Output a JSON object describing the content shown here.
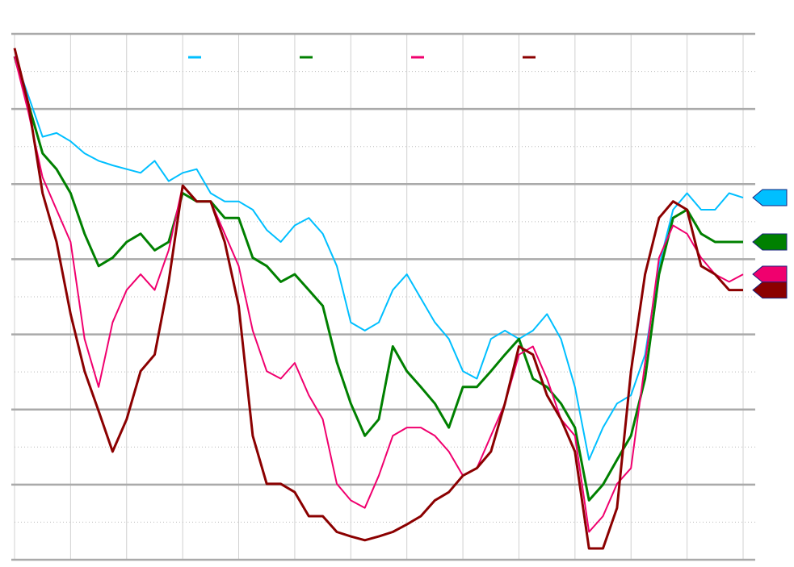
{
  "chart_data": {
    "type": "line",
    "x": [
      0,
      0.25,
      0.5,
      0.75,
      1,
      1.25,
      1.5,
      1.75,
      2,
      2.25,
      2.5,
      2.75,
      3,
      3.25,
      3.5,
      3.75,
      4,
      4.25,
      4.5,
      4.75,
      5,
      5.25,
      5.5,
      5.75,
      6,
      6.25,
      6.5,
      6.75,
      7,
      7.25,
      7.5,
      7.75,
      8,
      8.25,
      8.5,
      8.75,
      9,
      9.25,
      9.5,
      9.75,
      10,
      10.25,
      10.5,
      10.75,
      11,
      11.25,
      11.5,
      11.75,
      12,
      12.25,
      12.5,
      12.75,
      13
    ],
    "xlim": [
      0,
      13
    ],
    "xticks": [
      0,
      1,
      2,
      3,
      4,
      5,
      6,
      7,
      8,
      9,
      10,
      11,
      12,
      13
    ],
    "ylim": [
      0,
      7
    ],
    "yticks": [
      0,
      1,
      2,
      3,
      4,
      5,
      6,
      7
    ],
    "minor_yticks": [
      0.5,
      1.5,
      2.5,
      3.5,
      4.5,
      5.5,
      6.5
    ],
    "grid": true,
    "series": [
      {
        "color": "#00bfff",
        "values": [
          6.7,
          6.17,
          5.63,
          5.68,
          5.57,
          5.41,
          5.31,
          5.25,
          5.2,
          5.15,
          5.31,
          5.04,
          5.15,
          5.2,
          4.88,
          4.77,
          4.77,
          4.66,
          4.39,
          4.23,
          4.45,
          4.55,
          4.34,
          3.91,
          3.16,
          3.05,
          3.16,
          3.59,
          3.8,
          3.48,
          3.16,
          2.94,
          2.51,
          2.41,
          2.94,
          3.05,
          2.94,
          3.05,
          3.27,
          2.94,
          2.3,
          1.33,
          1.76,
          2.08,
          2.19,
          2.73,
          3.91,
          4.66,
          4.88,
          4.66,
          4.66,
          4.88,
          4.82
        ]
      },
      {
        "color": "#008000",
        "values": [
          6.7,
          6.06,
          5.41,
          5.2,
          4.88,
          4.34,
          3.91,
          4.02,
          4.23,
          4.34,
          4.12,
          4.23,
          4.88,
          4.77,
          4.77,
          4.55,
          4.55,
          4.02,
          3.91,
          3.7,
          3.8,
          3.59,
          3.38,
          2.63,
          2.08,
          1.65,
          1.87,
          2.84,
          2.51,
          2.3,
          2.08,
          1.76,
          2.3,
          2.3,
          2.51,
          2.73,
          2.94,
          2.41,
          2.3,
          2.08,
          1.76,
          0.79,
          1.0,
          1.33,
          1.65,
          2.41,
          3.8,
          4.55,
          4.66,
          4.34,
          4.23,
          4.23,
          4.23
        ]
      },
      {
        "color": "#f0006e",
        "values": [
          6.7,
          5.95,
          5.09,
          4.66,
          4.23,
          2.94,
          2.3,
          3.16,
          3.59,
          3.8,
          3.59,
          4.12,
          4.98,
          4.77,
          4.77,
          4.34,
          3.91,
          3.05,
          2.51,
          2.41,
          2.62,
          2.19,
          1.87,
          1.01,
          0.79,
          0.69,
          1.12,
          1.65,
          1.76,
          1.76,
          1.65,
          1.44,
          1.12,
          1.22,
          1.65,
          2.08,
          2.73,
          2.84,
          2.41,
          1.87,
          1.65,
          0.37,
          0.58,
          1.01,
          1.22,
          2.62,
          4.02,
          4.45,
          4.34,
          4.02,
          3.8,
          3.7,
          3.8
        ]
      },
      {
        "color": "#8b0000",
        "values": [
          6.81,
          6.06,
          4.88,
          4.23,
          3.27,
          2.51,
          1.98,
          1.44,
          1.87,
          2.51,
          2.73,
          3.7,
          4.98,
          4.77,
          4.77,
          4.23,
          3.38,
          1.65,
          1.01,
          1.01,
          0.9,
          0.58,
          0.58,
          0.37,
          0.31,
          0.26,
          0.31,
          0.37,
          0.47,
          0.58,
          0.79,
          0.9,
          1.12,
          1.22,
          1.44,
          2.08,
          2.84,
          2.73,
          2.19,
          1.87,
          1.44,
          0.15,
          0.15,
          0.69,
          2.51,
          3.8,
          4.55,
          4.77,
          4.66,
          3.91,
          3.8,
          3.59,
          3.59
        ]
      }
    ]
  }
}
